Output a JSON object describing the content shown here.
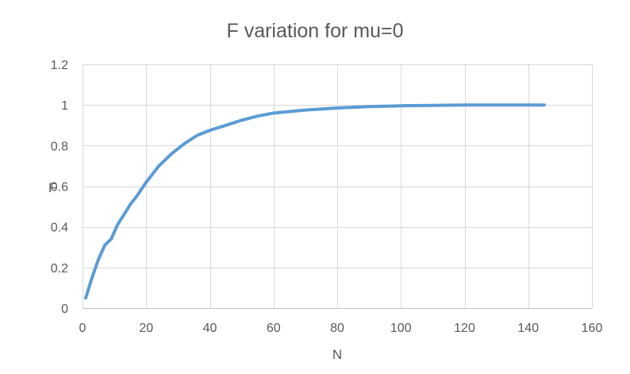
{
  "chart_data": {
    "type": "line",
    "title": "F variation for mu=0",
    "xlabel": "N",
    "ylabel": "F",
    "xlim": [
      0,
      160
    ],
    "ylim": [
      0,
      1.2
    ],
    "x_ticks": [
      "0",
      "20",
      "40",
      "60",
      "80",
      "100",
      "120",
      "140",
      "160"
    ],
    "y_ticks": [
      "0",
      "0.2",
      "0.4",
      "0.6",
      "0.8",
      "1",
      "1.2"
    ],
    "grid": true,
    "legend": "none",
    "series_color": "#5b9bd5",
    "series": [
      {
        "x": [
          1,
          3,
          5,
          7,
          9,
          11,
          13,
          15,
          17,
          20,
          24,
          28,
          32,
          36,
          40,
          45,
          50,
          55,
          60,
          70,
          80,
          90,
          100,
          110,
          120,
          130,
          140,
          145
        ],
        "values": [
          0.05,
          0.15,
          0.24,
          0.31,
          0.34,
          0.41,
          0.46,
          0.51,
          0.55,
          0.62,
          0.7,
          0.76,
          0.81,
          0.85,
          0.875,
          0.9,
          0.925,
          0.945,
          0.96,
          0.975,
          0.985,
          0.992,
          0.996,
          0.998,
          1.0,
          1.0,
          1.0,
          1.0
        ]
      }
    ]
  }
}
